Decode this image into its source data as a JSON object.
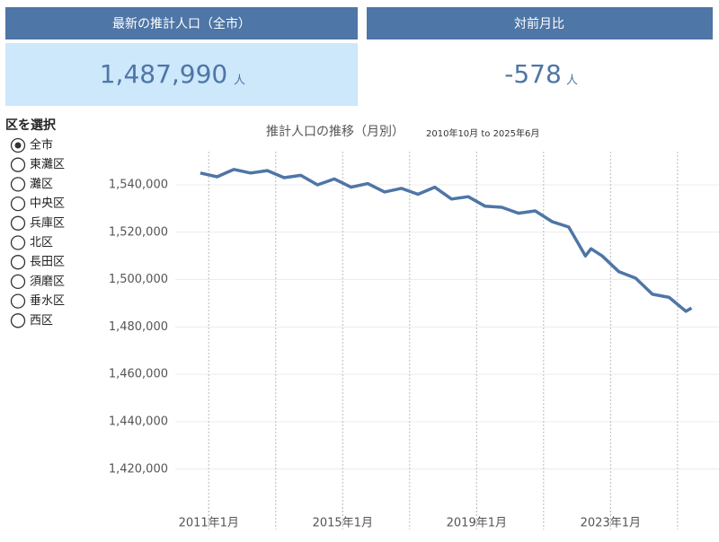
{
  "kpis": [
    {
      "title": "最新の推計人口（全市）",
      "value": "1,487,990",
      "unit": "人"
    },
    {
      "title": "対前月比",
      "value": "-578",
      "unit": "人"
    }
  ],
  "selector": {
    "label": "区を選択",
    "options": [
      "全市",
      "東灘区",
      "灘区",
      "中央区",
      "兵庫区",
      "北区",
      "長田区",
      "須磨区",
      "垂水区",
      "西区"
    ],
    "selected": 0
  },
  "chart_data": {
    "type": "line",
    "title": "推計人口の推移（月別）",
    "subtitle": "2010年10月 to 2025年6月",
    "color": "#4e76a6",
    "x": [
      "2010-10",
      "2011-04",
      "2011-10",
      "2012-04",
      "2012-10",
      "2013-04",
      "2013-10",
      "2014-04",
      "2014-10",
      "2015-04",
      "2015-10",
      "2016-04",
      "2016-10",
      "2017-04",
      "2017-10",
      "2018-04",
      "2018-10",
      "2019-04",
      "2019-10",
      "2020-04",
      "2020-10",
      "2021-04",
      "2021-10",
      "2022-04",
      "2022-06",
      "2022-10",
      "2023-04",
      "2023-10",
      "2024-04",
      "2024-10",
      "2025-04",
      "2025-06"
    ],
    "values": [
      1545000,
      1543400,
      1546500,
      1545000,
      1546000,
      1543000,
      1544000,
      1540000,
      1542500,
      1539000,
      1540500,
      1537000,
      1538500,
      1536000,
      1539000,
      1534000,
      1535000,
      1531000,
      1530500,
      1528000,
      1529000,
      1524500,
      1522200,
      1510000,
      1513000,
      1510000,
      1503300,
      1500600,
      1493800,
      1492500,
      1486600,
      1487990
    ],
    "xlim": [
      "2010-01",
      "2025-12"
    ],
    "xticks": [
      {
        "value": "2011-01",
        "label": "2011年1月"
      },
      {
        "value": "2015-01",
        "label": "2015年1月"
      },
      {
        "value": "2019-01",
        "label": "2019年1月"
      },
      {
        "value": "2023-01",
        "label": "2023年1月"
      }
    ],
    "xgrid": [
      "2011-01",
      "2013-01",
      "2015-01",
      "2017-01",
      "2019-01",
      "2021-01",
      "2023-01",
      "2025-01"
    ],
    "ylim": [
      1404000,
      1554000
    ],
    "yticks": [
      {
        "value": 1420000,
        "label": "1,420,000"
      },
      {
        "value": 1440000,
        "label": "1,440,000"
      },
      {
        "value": 1460000,
        "label": "1,460,000"
      },
      {
        "value": 1480000,
        "label": "1,480,000"
      },
      {
        "value": 1500000,
        "label": "1,500,000"
      },
      {
        "value": 1520000,
        "label": "1,520,000"
      },
      {
        "value": 1540000,
        "label": "1,540,000"
      }
    ],
    "grid": true
  }
}
